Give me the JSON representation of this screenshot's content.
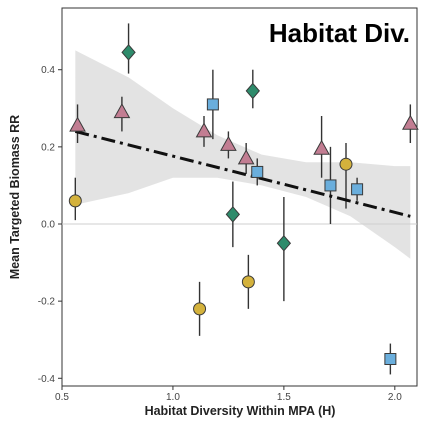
{
  "chart_data": {
    "type": "scatter",
    "title": "Habitat Div.",
    "xlabel": "Habitat Diversity Within MPA (H)",
    "ylabel": "Mean Targeted Biomass RR",
    "xlim": [
      0.5,
      2.1
    ],
    "ylim": [
      -0.42,
      0.56
    ],
    "x_ticks": [
      0.5,
      1.0,
      1.5,
      2.0
    ],
    "x_tick_labels": [
      "0.5",
      "1.0",
      "1.5",
      "2.0"
    ],
    "y_ticks": [
      -0.4,
      -0.2,
      0.0,
      0.2,
      0.4
    ],
    "y_tick_labels": [
      "-0.4",
      "-0.2",
      "0.0",
      "0.2",
      "0.4"
    ],
    "grid": false,
    "reference_line_y": 0.0,
    "trend": {
      "type": "dashdot",
      "color": "#111111",
      "x": [
        0.56,
        2.07
      ],
      "y": [
        0.24,
        0.02
      ],
      "ci_band": {
        "color": "#d9d9d9",
        "x": [
          0.56,
          0.8,
          1.0,
          1.2,
          1.4,
          1.6,
          1.8,
          2.0,
          2.07
        ],
        "lower": [
          0.05,
          0.08,
          0.12,
          0.12,
          0.1,
          0.07,
          0.02,
          -0.06,
          -0.09
        ],
        "upper": [
          0.45,
          0.38,
          0.3,
          0.23,
          0.18,
          0.16,
          0.16,
          0.15,
          0.15
        ]
      }
    },
    "series": [
      {
        "marker": "triangle",
        "color": "#c27d92",
        "points": [
          {
            "x": 0.57,
            "y": 0.255,
            "lo": 0.21,
            "hi": 0.31
          },
          {
            "x": 0.77,
            "y": 0.29,
            "lo": 0.24,
            "hi": 0.33
          },
          {
            "x": 1.14,
            "y": 0.24,
            "lo": 0.2,
            "hi": 0.28
          },
          {
            "x": 1.25,
            "y": 0.205,
            "lo": 0.17,
            "hi": 0.24
          },
          {
            "x": 1.33,
            "y": 0.17,
            "lo": 0.13,
            "hi": 0.21
          },
          {
            "x": 1.67,
            "y": 0.195,
            "lo": 0.12,
            "hi": 0.28
          },
          {
            "x": 2.07,
            "y": 0.26,
            "lo": 0.21,
            "hi": 0.31
          }
        ]
      },
      {
        "marker": "diamond",
        "color": "#2e8b6b",
        "points": [
          {
            "x": 0.8,
            "y": 0.445,
            "lo": 0.39,
            "hi": 0.52
          },
          {
            "x": 1.36,
            "y": 0.345,
            "lo": 0.3,
            "hi": 0.4
          },
          {
            "x": 1.27,
            "y": 0.025,
            "lo": -0.06,
            "hi": 0.11
          },
          {
            "x": 1.5,
            "y": -0.05,
            "lo": -0.2,
            "hi": 0.07
          }
        ]
      },
      {
        "marker": "square",
        "color": "#6aaedc",
        "points": [
          {
            "x": 1.18,
            "y": 0.31,
            "lo": 0.22,
            "hi": 0.4
          },
          {
            "x": 1.38,
            "y": 0.135,
            "lo": 0.1,
            "hi": 0.17
          },
          {
            "x": 1.71,
            "y": 0.1,
            "lo": 0.0,
            "hi": 0.2
          },
          {
            "x": 1.83,
            "y": 0.09,
            "lo": 0.06,
            "hi": 0.12
          },
          {
            "x": 1.98,
            "y": -0.35,
            "lo": -0.39,
            "hi": -0.31
          }
        ]
      },
      {
        "marker": "circle",
        "color": "#d4b23c",
        "points": [
          {
            "x": 0.56,
            "y": 0.06,
            "lo": 0.01,
            "hi": 0.12
          },
          {
            "x": 1.78,
            "y": 0.155,
            "lo": 0.04,
            "hi": 0.21
          },
          {
            "x": 1.34,
            "y": -0.15,
            "lo": -0.22,
            "hi": -0.08
          },
          {
            "x": 1.12,
            "y": -0.22,
            "lo": -0.29,
            "hi": -0.15
          }
        ]
      }
    ]
  }
}
